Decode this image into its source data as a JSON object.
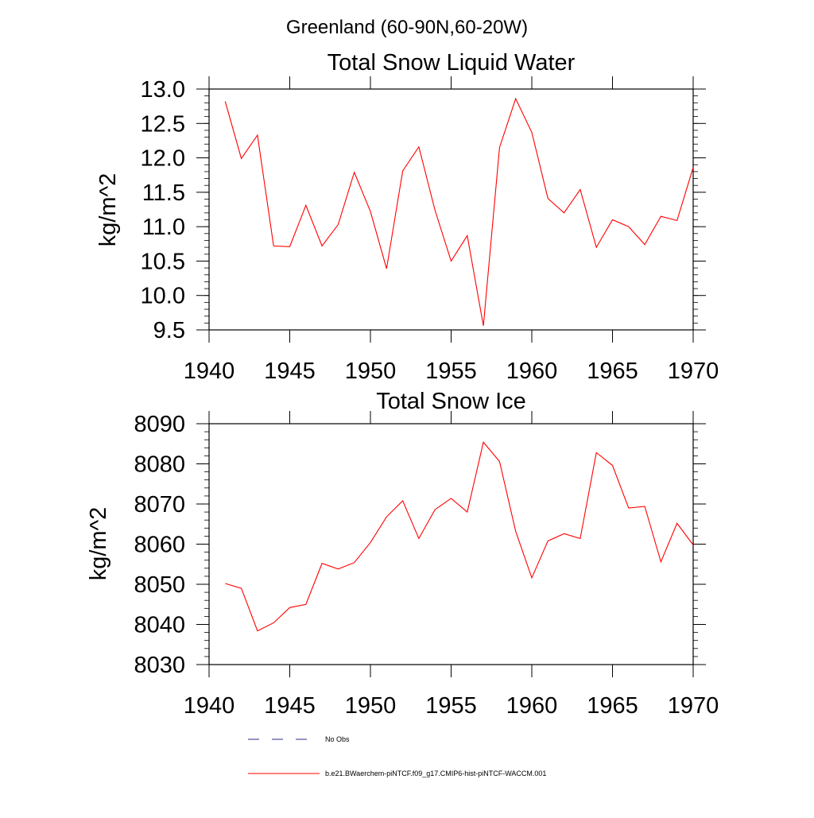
{
  "suptitle": "Greenland (60-90N,60-20W)",
  "legend": {
    "entries": [
      {
        "label": "No Obs",
        "color": "#2b2b8a",
        "style": "dashed"
      },
      {
        "label": "b.e21.BWaerchem-piNTCF.f09_g17.CMIP6-hist-piNTCF-WACCM.001",
        "color": "#ff0000",
        "style": "solid"
      }
    ]
  },
  "chart_data": [
    {
      "type": "line",
      "title": "Total Snow Liquid Water",
      "ylabel": "kg/m^2",
      "xlabel": "",
      "xlim": [
        1940,
        1970
      ],
      "ylim": [
        9.5,
        13.0
      ],
      "x_ticks": [
        "1940",
        "1945",
        "1950",
        "1955",
        "1960",
        "1965",
        "1970"
      ],
      "y_ticks": [
        "9.5",
        "10.0",
        "10.5",
        "11.0",
        "11.5",
        "12.0",
        "12.5",
        "13.0"
      ],
      "grid": false,
      "series": [
        {
          "name": "b.e21.BWaerchem-piNTCF.f09_g17.CMIP6-hist-piNTCF-WACCM.001",
          "color": "#ff0000",
          "x": [
            1941,
            1942,
            1943,
            1944,
            1945,
            1946,
            1947,
            1948,
            1949,
            1950,
            1951,
            1952,
            1953,
            1954,
            1955,
            1956,
            1957,
            1958,
            1959,
            1960,
            1961,
            1962,
            1963,
            1964,
            1965,
            1966,
            1967,
            1968,
            1969,
            1970
          ],
          "values": [
            12.82,
            11.99,
            12.33,
            10.72,
            10.71,
            11.31,
            10.72,
            11.03,
            11.79,
            11.22,
            10.39,
            11.81,
            12.16,
            11.24,
            10.5,
            10.87,
            9.56,
            12.15,
            12.86,
            12.37,
            11.41,
            11.2,
            11.54,
            10.7,
            11.1,
            11.0,
            10.74,
            11.15,
            11.09,
            11.86
          ]
        }
      ]
    },
    {
      "type": "line",
      "title": "Total Snow Ice",
      "ylabel": "kg/m^2",
      "xlabel": "",
      "xlim": [
        1940,
        1970
      ],
      "ylim": [
        8030,
        8090
      ],
      "x_ticks": [
        "1940",
        "1945",
        "1950",
        "1955",
        "1960",
        "1965",
        "1970"
      ],
      "y_ticks": [
        "8030",
        "8040",
        "8050",
        "8060",
        "8070",
        "8080",
        "8090"
      ],
      "grid": false,
      "series": [
        {
          "name": "b.e21.BWaerchem-piNTCF.f09_g17.CMIP6-hist-piNTCF-WACCM.001",
          "color": "#ff0000",
          "x": [
            1941,
            1942,
            1943,
            1944,
            1945,
            1946,
            1947,
            1948,
            1949,
            1950,
            1951,
            1952,
            1953,
            1954,
            1955,
            1956,
            1957,
            1958,
            1959,
            1960,
            1961,
            1962,
            1963,
            1964,
            1965,
            1966,
            1967,
            1968,
            1969,
            1970
          ],
          "values": [
            8050.2,
            8049.0,
            8038.4,
            8040.4,
            8044.2,
            8045.0,
            8055.2,
            8053.8,
            8055.4,
            8060.4,
            8066.8,
            8070.8,
            8061.4,
            8068.6,
            8071.4,
            8068.0,
            8085.4,
            8080.6,
            8063.2,
            8051.6,
            8060.8,
            8062.6,
            8061.4,
            8082.8,
            8079.6,
            8069.0,
            8069.4,
            8055.6,
            8065.2,
            8059.8
          ]
        }
      ]
    }
  ]
}
